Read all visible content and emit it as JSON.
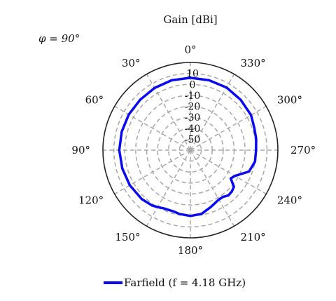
{
  "chart_data": {
    "type": "polar-line",
    "title": "Gain [dBi]",
    "annotation": "φ = 90°",
    "angle_direction": "counterclockwise",
    "zero_angle_position": "top",
    "angular_ticks": [
      0,
      30,
      60,
      90,
      120,
      150,
      180,
      210,
      240,
      270,
      300,
      330
    ],
    "angular_tick_labels": [
      "0°",
      "30°",
      "60°",
      "90°",
      "120°",
      "150°",
      "180°",
      "210°",
      "240°",
      "270°",
      "300°",
      "330°"
    ],
    "radial_range": [
      -60,
      20
    ],
    "radial_ticks": [
      -50,
      -40,
      -30,
      -20,
      -10,
      0,
      10
    ],
    "radial_tick_labels": [
      "-50",
      "-40",
      "-30",
      "-20",
      "-10",
      "0",
      "10"
    ],
    "grid": true,
    "legend_position": "bottom",
    "series": [
      {
        "name": "Farfield (f = 4.18 GHz)",
        "color": "#0a0af0",
        "theta_deg": [
          0,
          15,
          30,
          45,
          60,
          75,
          90,
          105,
          120,
          135,
          145,
          150,
          155,
          160,
          165,
          170,
          180,
          190,
          200,
          210,
          215,
          220,
          225,
          230,
          235,
          240,
          250,
          260,
          270,
          280,
          290,
          300,
          315,
          330,
          345,
          360
        ],
        "gain_dbi": [
          6,
          6,
          5.5,
          5,
          5,
          5,
          5,
          4.5,
          4,
          3,
          1.5,
          0,
          -1.5,
          -2,
          -2,
          -1,
          0,
          -1,
          -5,
          -8,
          -8,
          -6,
          -6.5,
          -8,
          -15,
          -13,
          -3,
          0,
          0,
          1,
          2,
          4,
          5,
          6,
          6,
          6
        ]
      }
    ]
  }
}
